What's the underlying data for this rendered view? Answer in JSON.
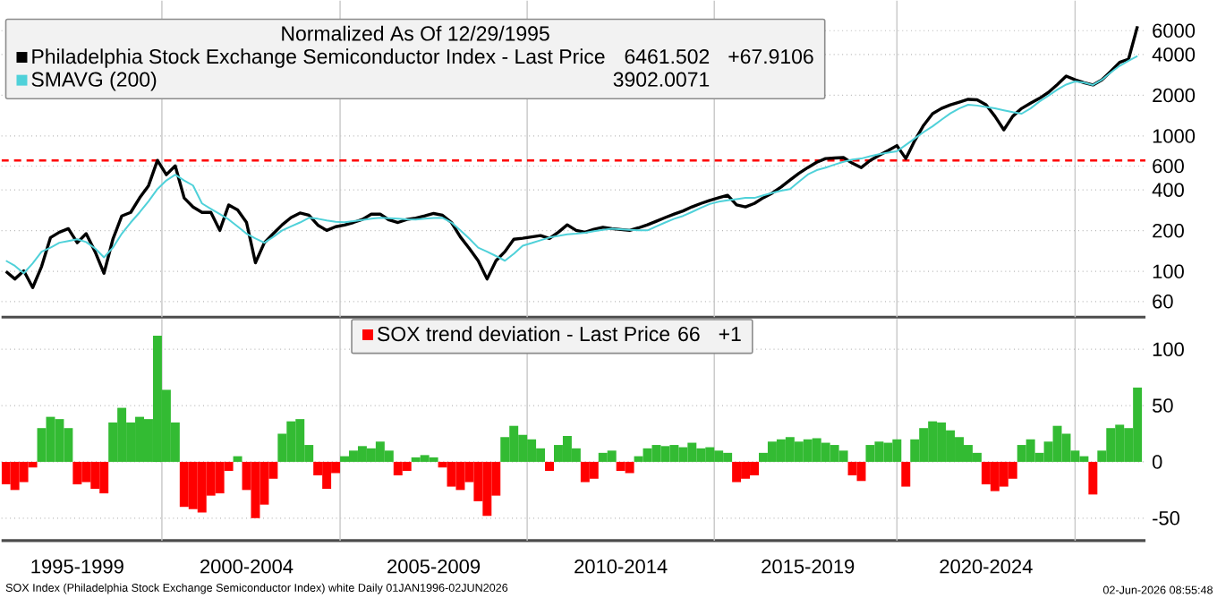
{
  "chart_data": [
    {
      "type": "line",
      "legend_title": "Normalized As Of 12/29/1995",
      "categories": [
        null,
        null,
        null,
        null,
        null,
        null,
        null,
        null,
        null,
        null,
        null,
        null,
        null,
        null,
        null,
        null,
        null,
        null,
        null,
        null,
        null,
        null,
        null,
        null,
        null,
        null,
        null,
        null,
        null,
        null,
        null,
        null,
        null,
        null,
        null,
        null,
        null,
        null,
        null,
        null,
        null,
        null,
        null,
        null,
        null,
        null,
        null,
        null,
        null,
        null,
        null,
        null,
        null,
        null,
        null,
        null,
        null,
        null,
        null,
        null,
        null,
        null,
        null,
        null,
        null,
        null,
        null,
        null,
        null,
        null,
        null,
        null,
        null,
        null,
        null,
        null,
        null,
        null,
        null,
        null,
        null,
        null,
        null,
        null,
        null,
        null,
        null,
        null,
        null,
        null,
        null,
        null,
        null,
        null,
        null,
        null,
        null,
        null,
        null,
        null,
        null,
        null,
        null,
        null,
        null,
        null,
        null,
        null,
        null,
        null,
        null,
        null,
        null,
        null,
        null,
        null,
        null,
        null,
        null,
        null,
        null,
        null,
        null,
        null,
        null,
        null,
        null,
        null
      ],
      "series": [
        {
          "name": "Philadelphia Stock Exchange Semiconductor Index - Last Price",
          "color": "#000000",
          "values": [
            100,
            88,
            101,
            76,
            109,
            178,
            195,
            207,
            163,
            190,
            140,
            97,
            173,
            257,
            273,
            349,
            430,
            661,
            518,
            603,
            349,
            299,
            273,
            273,
            201,
            310,
            285,
            230,
            116,
            163,
            190,
            221,
            250,
            270,
            260,
            220,
            201,
            214,
            220,
            230,
            242,
            265,
            265,
            240,
            230,
            242,
            248,
            257,
            268,
            260,
            230,
            180,
            148,
            120,
            88,
            120,
            140,
            173,
            176,
            180,
            184,
            175,
            195,
            221,
            201,
            195,
            205,
            212,
            207,
            204,
            201,
            210,
            221,
            235,
            250,
            265,
            280,
            300,
            318,
            335,
            350,
            365,
            310,
            300,
            318,
            350,
            379,
            420,
            473,
            530,
            585,
            640,
            682,
            688,
            694,
            630,
            585,
            660,
            720,
            780,
            850,
            682,
            925,
            1200,
            1462,
            1600,
            1700,
            1780,
            1866,
            1850,
            1702,
            1400,
            1112,
            1400,
            1600,
            1750,
            1900,
            2100,
            2400,
            2773,
            2600,
            2480,
            2383,
            2600,
            3000,
            3500,
            3700,
            6461.502
          ]
        },
        {
          "name": "SMAVG (200)",
          "color": "#4fd1d9",
          "values": [
            120,
            110,
            97,
            115,
            140,
            150,
            163,
            168,
            173,
            165,
            148,
            127,
            150,
            190,
            230,
            273,
            330,
            406,
            470,
            518,
            470,
            431,
            318,
            290,
            265,
            242,
            215,
            190,
            175,
            163,
            180,
            201,
            215,
            230,
            249,
            245,
            238,
            233,
            231,
            235,
            240,
            245,
            249,
            247,
            245,
            243,
            242,
            245,
            248,
            249,
            230,
            201,
            175,
            150,
            140,
            130,
            120,
            135,
            155,
            162,
            170,
            178,
            183,
            188,
            190,
            193,
            198,
            203,
            207,
            205,
            203,
            201,
            201,
            215,
            230,
            245,
            257,
            275,
            295,
            315,
            328,
            335,
            342,
            349,
            349,
            365,
            380,
            395,
            406,
            460,
            520,
            560,
            585,
            615,
            645,
            670,
            682,
            710,
            735,
            755,
            771,
            860,
            960,
            1070,
            1180,
            1320,
            1470,
            1600,
            1702,
            1680,
            1640,
            1600,
            1550,
            1500,
            1462,
            1600,
            1800,
            1986,
            2200,
            2400,
            2531,
            2480,
            2383,
            2600,
            2944,
            3300,
            3600,
            3902.0071
          ]
        }
      ],
      "ylim": [
        46,
        10000
      ],
      "yticks": [
        60,
        100,
        200,
        400,
        600,
        1000,
        2000,
        4000,
        6000
      ],
      "log": "y",
      "grid": true,
      "legend": "top left",
      "tick_labels": "y",
      "ref_lines": [
        {
          "axis": "y",
          "value": 660,
          "color": "#ff0000",
          "line_style": "dashed"
        }
      ],
      "annotations": [
        "6461.502",
        "+67.9106",
        "3902.0071"
      ]
    },
    {
      "type": "bar",
      "categories": [
        null,
        null,
        null,
        null,
        null,
        null,
        null,
        null,
        "1995-1999",
        null,
        null,
        null,
        null,
        null,
        null,
        null,
        null,
        null,
        null,
        null,
        null,
        null,
        null,
        null,
        null,
        null,
        null,
        "2000-2004",
        null,
        null,
        null,
        null,
        null,
        null,
        null,
        null,
        null,
        null,
        null,
        null,
        null,
        null,
        null,
        null,
        null,
        null,
        null,
        null,
        "2005-2009",
        null,
        null,
        null,
        null,
        null,
        null,
        null,
        null,
        null,
        null,
        null,
        null,
        null,
        null,
        null,
        null,
        null,
        null,
        null,
        null,
        "2010-2014",
        null,
        null,
        null,
        null,
        null,
        null,
        null,
        null,
        null,
        null,
        null,
        null,
        null,
        null,
        null,
        null,
        null,
        null,
        null,
        null,
        "2015-2019",
        null,
        null,
        null,
        null,
        null,
        null,
        null,
        null,
        null,
        null,
        null,
        null,
        null,
        null,
        null,
        null,
        null,
        null,
        null,
        "2020-2024",
        null,
        null,
        null,
        null,
        null,
        null,
        null,
        null,
        null,
        null,
        null,
        null,
        null,
        null,
        null,
        null,
        null
      ],
      "series": [
        {
          "name": "SOX trend deviation - Last Price",
          "color": "#ff0000",
          "values": [
            -20,
            -25,
            -18,
            -5,
            30,
            40,
            38,
            30,
            -20,
            -18,
            -24,
            -28,
            35,
            48,
            35,
            40,
            38,
            112,
            64,
            35,
            -40,
            -42,
            -45,
            -30,
            -28,
            -8,
            5,
            -25,
            -50,
            -38,
            -15,
            25,
            36,
            38,
            15,
            -12,
            -24,
            -10,
            5,
            10,
            14,
            12,
            18,
            10,
            -12,
            -8,
            4,
            6,
            4,
            -5,
            -22,
            -25,
            -18,
            -35,
            -48,
            -30,
            22,
            32,
            24,
            20,
            12,
            -8,
            15,
            23,
            12,
            -18,
            -15,
            8,
            10,
            -8,
            -10,
            5,
            12,
            15,
            14,
            15,
            13,
            17,
            12,
            13,
            10,
            8,
            -18,
            -15,
            -12,
            8,
            18,
            20,
            22,
            18,
            20,
            21,
            17,
            15,
            10,
            -12,
            -17,
            15,
            18,
            17,
            20,
            -22,
            20,
            30,
            36,
            35,
            28,
            22,
            15,
            8,
            -20,
            -26,
            -22,
            -15,
            15,
            20,
            8,
            18,
            32,
            25,
            10,
            5,
            -29,
            10,
            30,
            33,
            30,
            66
          ],
          "colors": [
            "#ff0000",
            "#ff0000",
            "#ff0000",
            "#ff0000",
            "#33bb33",
            "#33bb33",
            "#33bb33",
            "#33bb33",
            "#ff0000",
            "#ff0000",
            "#ff0000",
            "#ff0000",
            "#33bb33",
            "#33bb33",
            "#33bb33",
            "#33bb33",
            "#33bb33",
            "#33bb33",
            "#33bb33",
            "#33bb33",
            "#ff0000",
            "#ff0000",
            "#ff0000",
            "#ff0000",
            "#ff0000",
            "#ff0000",
            "#33bb33",
            "#ff0000",
            "#ff0000",
            "#ff0000",
            "#ff0000",
            "#33bb33",
            "#33bb33",
            "#33bb33",
            "#33bb33",
            "#ff0000",
            "#ff0000",
            "#ff0000",
            "#33bb33",
            "#33bb33",
            "#33bb33",
            "#33bb33",
            "#33bb33",
            "#33bb33",
            "#ff0000",
            "#ff0000",
            "#33bb33",
            "#33bb33",
            "#33bb33",
            "#ff0000",
            "#ff0000",
            "#ff0000",
            "#ff0000",
            "#ff0000",
            "#ff0000",
            "#ff0000",
            "#33bb33",
            "#33bb33",
            "#33bb33",
            "#33bb33",
            "#33bb33",
            "#ff0000",
            "#33bb33",
            "#33bb33",
            "#33bb33",
            "#ff0000",
            "#ff0000",
            "#33bb33",
            "#33bb33",
            "#ff0000",
            "#ff0000",
            "#33bb33",
            "#33bb33",
            "#33bb33",
            "#33bb33",
            "#33bb33",
            "#33bb33",
            "#33bb33",
            "#33bb33",
            "#33bb33",
            "#33bb33",
            "#33bb33",
            "#ff0000",
            "#ff0000",
            "#ff0000",
            "#33bb33",
            "#33bb33",
            "#33bb33",
            "#33bb33",
            "#33bb33",
            "#33bb33",
            "#33bb33",
            "#33bb33",
            "#33bb33",
            "#33bb33",
            "#ff0000",
            "#ff0000",
            "#33bb33",
            "#33bb33",
            "#33bb33",
            "#33bb33",
            "#ff0000",
            "#33bb33",
            "#33bb33",
            "#33bb33",
            "#33bb33",
            "#33bb33",
            "#33bb33",
            "#33bb33",
            "#33bb33",
            "#ff0000",
            "#ff0000",
            "#ff0000",
            "#ff0000",
            "#33bb33",
            "#33bb33",
            "#33bb33",
            "#33bb33",
            "#33bb33",
            "#33bb33",
            "#33bb33",
            "#33bb33",
            "#ff0000",
            "#33bb33",
            "#33bb33",
            "#33bb33",
            "#33bb33",
            "#33bb33"
          ]
        }
      ],
      "ylim": [
        -70,
        127
      ],
      "yticks": [
        -50,
        0,
        50,
        100
      ],
      "grid": true,
      "legend": "top",
      "annotations": [
        "66",
        "+1",
        "SOX Index (Philadelphia Stock Exchange Semiconductor Index) white Daily 01JAN1996-02JUN2026",
        "02-Jun-2026 08:55:48"
      ]
    }
  ]
}
